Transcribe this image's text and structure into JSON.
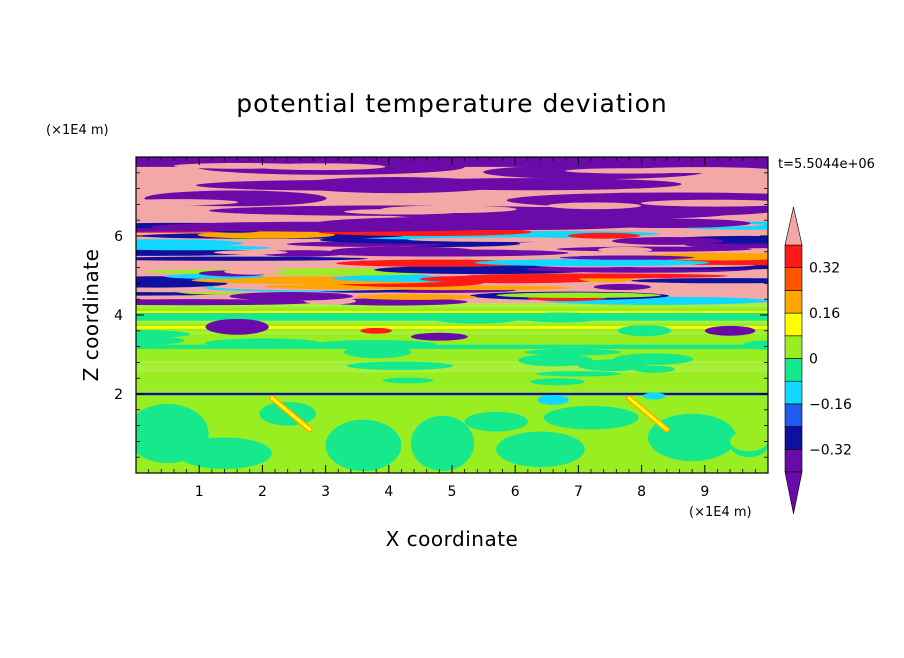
{
  "chart_data": {
    "type": "heatmap",
    "title": "potential temperature deviation",
    "xlabel": "X coordinate",
    "ylabel": "Z coordinate",
    "x_unit": "(×1E4 m)",
    "y_unit": "(×1E4 m)",
    "time_label": "t=5.5044e+06",
    "xlim": [
      0,
      10
    ],
    "ylim": [
      0,
      8
    ],
    "x_ticks": [
      "1",
      "2",
      "3",
      "4",
      "5",
      "6",
      "7",
      "8",
      "9"
    ],
    "y_ticks": [
      "2",
      "4",
      "6"
    ],
    "grid": false,
    "legend_placement": "right",
    "colorbar": {
      "levels": [
        -0.4,
        -0.32,
        -0.24,
        -0.16,
        -0.08,
        0,
        0.08,
        0.16,
        0.24,
        0.32,
        0.4
      ],
      "tick_labels": [
        "0.32",
        "0.16",
        "0",
        "−0.16",
        "−0.32"
      ],
      "tick_values": [
        0.32,
        0.16,
        0,
        -0.16,
        -0.32
      ],
      "colors": [
        "#6a0aa8",
        "#0f0fa0",
        "#1f5cf0",
        "#11d8ff",
        "#16e98c",
        "#99ee22",
        "#ffff00",
        "#ffa500",
        "#ff5500",
        "#ff1a1a",
        "#f4a7a7"
      ],
      "extend": "both"
    },
    "regions": [
      {
        "zmin": 6.2,
        "zmax": 8.0,
        "pattern": "alternating bands of positive (pink, > 0.4) and negative (purple, < -0.4) deviation"
      },
      {
        "zmin": 4.3,
        "zmax": 6.2,
        "pattern": "finely mixed positive/negative deviations with orange, red, blue layers"
      },
      {
        "zmin": 2.1,
        "zmax": 4.3,
        "pattern": "mostly near zero (light green, 0 to 0.08) with green layers and a few purple patches"
      },
      {
        "zmin": 1.95,
        "zmax": 2.05,
        "pattern": "thin dark blue / cyan layer near z = 2"
      },
      {
        "zmin": 0.0,
        "zmax": 1.9,
        "pattern": "green (-0.08 to 0) and light green regions with rounded cells near x = 3.5–5.5"
      }
    ]
  }
}
